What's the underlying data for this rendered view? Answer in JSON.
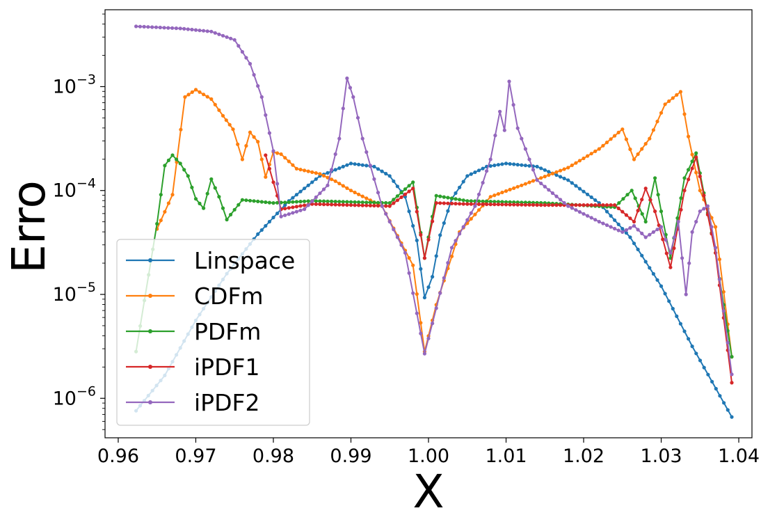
{
  "chart_data": {
    "type": "line",
    "xlabel": "X",
    "ylabel": "Erro",
    "xlim": [
      0.9583,
      1.0417
    ],
    "ylim_log10": [
      -6.38,
      -2.26
    ],
    "yscale": "log",
    "grid": false,
    "legend_placement": "lower-left",
    "x_ticks": [
      0.96,
      0.97,
      0.98,
      0.99,
      1.0,
      1.01,
      1.02,
      1.03,
      1.04
    ],
    "x_tick_labels": [
      "0.96",
      "0.97",
      "0.98",
      "0.99",
      "1.00",
      "1.01",
      "1.02",
      "1.03",
      "1.04"
    ],
    "y_ticks": [
      {
        "exp": -3,
        "base": "10",
        "power": "−3"
      },
      {
        "exp": -4,
        "base": "10",
        "power": "−4"
      },
      {
        "exp": -5,
        "base": "10",
        "power": "−5"
      },
      {
        "exp": -6,
        "base": "10",
        "power": "−6"
      }
    ],
    "series": [
      {
        "name": "Linspace",
        "color": "#1f77b4",
        "points": [
          [
            0.9623,
            -6.12
          ],
          [
            0.966,
            -5.78
          ],
          [
            0.97,
            -5.25
          ],
          [
            0.974,
            -4.8
          ],
          [
            0.978,
            -4.42
          ],
          [
            0.982,
            -4.1
          ],
          [
            0.986,
            -3.86
          ],
          [
            0.99,
            -3.74
          ],
          [
            0.993,
            -3.77
          ],
          [
            0.995,
            -3.86
          ],
          [
            0.997,
            -4.06
          ],
          [
            0.9985,
            -4.48
          ],
          [
            0.9995,
            -5.03
          ],
          [
            1.0005,
            -4.83
          ],
          [
            1.0015,
            -4.43
          ],
          [
            1.003,
            -4.08
          ],
          [
            1.005,
            -3.86
          ],
          [
            1.0075,
            -3.77
          ],
          [
            1.01,
            -3.74
          ],
          [
            1.014,
            -3.77
          ],
          [
            1.018,
            -3.9
          ],
          [
            1.022,
            -4.12
          ],
          [
            1.026,
            -4.45
          ],
          [
            1.03,
            -4.92
          ],
          [
            1.034,
            -5.5
          ],
          [
            1.0391,
            -6.18
          ]
        ]
      },
      {
        "name": "CDFm",
        "color": "#ff7f0e",
        "points": [
          [
            0.965,
            -4.37
          ],
          [
            0.967,
            -4.04
          ],
          [
            0.9686,
            -3.1
          ],
          [
            0.97,
            -3.03
          ],
          [
            0.972,
            -3.12
          ],
          [
            0.9735,
            -3.28
          ],
          [
            0.9748,
            -3.41
          ],
          [
            0.976,
            -3.7
          ],
          [
            0.977,
            -3.44
          ],
          [
            0.978,
            -3.53
          ],
          [
            0.979,
            -3.87
          ],
          [
            0.98,
            -3.63
          ],
          [
            0.981,
            -3.65
          ],
          [
            0.983,
            -3.79
          ],
          [
            0.986,
            -3.84
          ],
          [
            0.988,
            -3.91
          ],
          [
            0.99,
            -4.0
          ],
          [
            0.994,
            -4.15
          ],
          [
            0.998,
            -4.72
          ],
          [
            0.9995,
            -5.55
          ],
          [
            1.001,
            -5.1
          ],
          [
            1.004,
            -4.4
          ],
          [
            1.008,
            -4.06
          ],
          [
            1.012,
            -3.95
          ],
          [
            1.018,
            -3.78
          ],
          [
            1.022,
            -3.6
          ],
          [
            1.025,
            -3.41
          ],
          [
            1.0265,
            -3.7
          ],
          [
            1.0285,
            -3.5
          ],
          [
            1.0305,
            -3.17
          ],
          [
            1.0325,
            -3.05
          ],
          [
            1.0335,
            -3.48
          ],
          [
            1.035,
            -4.0
          ],
          [
            1.037,
            -4.35
          ],
          [
            1.0391,
            -5.6
          ]
        ]
      },
      {
        "name": "PDFm",
        "color": "#2ca02c",
        "points": [
          [
            0.9623,
            -5.55
          ],
          [
            0.965,
            -4.32
          ],
          [
            0.966,
            -3.76
          ],
          [
            0.967,
            -3.66
          ],
          [
            0.968,
            -3.74
          ],
          [
            0.969,
            -3.86
          ],
          [
            0.97,
            -4.08
          ],
          [
            0.971,
            -4.17
          ],
          [
            0.972,
            -3.89
          ],
          [
            0.973,
            -4.06
          ],
          [
            0.974,
            -4.28
          ],
          [
            0.976,
            -4.09
          ],
          [
            0.98,
            -4.12
          ],
          [
            0.985,
            -4.1
          ],
          [
            0.99,
            -4.11
          ],
          [
            0.995,
            -4.12
          ],
          [
            0.998,
            -3.92
          ],
          [
            0.9995,
            -4.65
          ],
          [
            1.001,
            -4.05
          ],
          [
            1.005,
            -4.1
          ],
          [
            1.015,
            -4.12
          ],
          [
            1.024,
            -4.16
          ],
          [
            1.0262,
            -4.0
          ],
          [
            1.028,
            -4.3
          ],
          [
            1.0292,
            -3.88
          ],
          [
            1.03,
            -4.2
          ],
          [
            1.0312,
            -4.65
          ],
          [
            1.033,
            -3.88
          ],
          [
            1.0345,
            -3.64
          ],
          [
            1.037,
            -4.6
          ],
          [
            1.0391,
            -5.6
          ]
        ]
      },
      {
        "name": "iPDF1",
        "color": "#d62728",
        "points": [
          [
            0.979,
            -3.66
          ],
          [
            0.981,
            -4.18
          ],
          [
            0.985,
            -4.13
          ],
          [
            0.99,
            -4.14
          ],
          [
            0.995,
            -4.15
          ],
          [
            0.998,
            -3.98
          ],
          [
            0.9995,
            -4.65
          ],
          [
            1.001,
            -4.12
          ],
          [
            1.005,
            -4.13
          ],
          [
            1.015,
            -4.14
          ],
          [
            1.024,
            -4.14
          ],
          [
            1.0265,
            -4.3
          ],
          [
            1.028,
            -3.98
          ],
          [
            1.0292,
            -4.2
          ],
          [
            1.0312,
            -4.74
          ],
          [
            1.033,
            -4.0
          ],
          [
            1.0345,
            -3.68
          ],
          [
            1.037,
            -4.6
          ],
          [
            1.0391,
            -5.85
          ]
        ]
      },
      {
        "name": "iPDF2",
        "color": "#9467bd",
        "points": [
          [
            0.9623,
            -2.42
          ],
          [
            0.968,
            -2.44
          ],
          [
            0.972,
            -2.47
          ],
          [
            0.975,
            -2.55
          ],
          [
            0.977,
            -2.78
          ],
          [
            0.9785,
            -3.1
          ],
          [
            0.98,
            -3.62
          ],
          [
            0.981,
            -4.25
          ],
          [
            0.984,
            -4.18
          ],
          [
            0.987,
            -3.95
          ],
          [
            0.9885,
            -3.5
          ],
          [
            0.9895,
            -2.92
          ],
          [
            0.9903,
            -3.1
          ],
          [
            0.9915,
            -3.5
          ],
          [
            0.994,
            -4.15
          ],
          [
            0.997,
            -4.6
          ],
          [
            0.9995,
            -5.57
          ],
          [
            1.003,
            -4.55
          ],
          [
            1.006,
            -4.15
          ],
          [
            1.008,
            -3.7
          ],
          [
            1.0092,
            -3.24
          ],
          [
            1.0098,
            -3.42
          ],
          [
            1.0104,
            -2.95
          ],
          [
            1.0115,
            -3.4
          ],
          [
            1.014,
            -3.9
          ],
          [
            1.018,
            -4.15
          ],
          [
            1.022,
            -4.3
          ],
          [
            1.025,
            -4.4
          ],
          [
            1.0265,
            -4.34
          ],
          [
            1.028,
            -4.45
          ],
          [
            1.03,
            -4.35
          ],
          [
            1.0312,
            -4.6
          ],
          [
            1.0322,
            -4.3
          ],
          [
            1.0332,
            -5.0
          ],
          [
            1.034,
            -4.4
          ],
          [
            1.035,
            -4.2
          ],
          [
            1.036,
            -4.15
          ],
          [
            1.037,
            -4.55
          ],
          [
            1.0391,
            -5.77
          ]
        ]
      }
    ]
  }
}
